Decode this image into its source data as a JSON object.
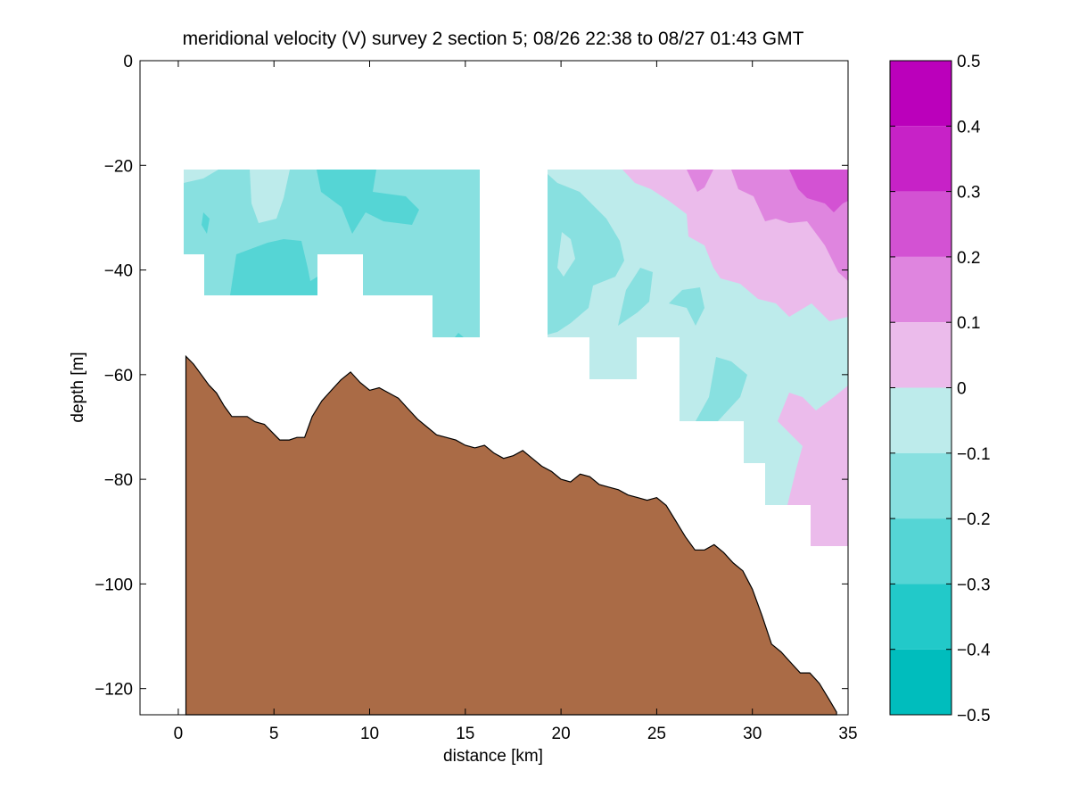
{
  "chart_data": {
    "type": "contour",
    "title": "meridional velocity (V) survey 2 section 5; 08/26 22:38 to 08/27 01:43 GMT",
    "xlabel": "distance [km]",
    "ylabel": "depth [m]",
    "xlim": [
      -2,
      35
    ],
    "ylim": [
      -125,
      0
    ],
    "xticks": [
      0,
      5,
      10,
      15,
      20,
      25,
      30,
      35
    ],
    "xtick_labels": [
      "0",
      "5",
      "10",
      "15",
      "20",
      "25",
      "30",
      "35"
    ],
    "yticks": [
      0,
      -20,
      -40,
      -60,
      -80,
      -100,
      -120
    ],
    "ytick_labels": [
      "0",
      "−20",
      "−40",
      "−60",
      "−80",
      "−100",
      "−120"
    ],
    "colorbar": {
      "range": [
        -0.5,
        0.5
      ],
      "ticks": [
        0.5,
        0.4,
        0.3,
        0.2,
        0.1,
        0,
        -0.1,
        -0.2,
        -0.3,
        -0.4,
        -0.5
      ],
      "tick_labels": [
        "0.5",
        "0.4",
        "0.3",
        "0.2",
        "0.1",
        "0",
        "−0.1",
        "−0.2",
        "−0.3",
        "−0.4",
        "−0.5"
      ],
      "levels": [
        {
          "lo": 0.4,
          "hi": 0.5,
          "color": "#bb00bb"
        },
        {
          "lo": 0.3,
          "hi": 0.4,
          "color": "#c722c7"
        },
        {
          "lo": 0.2,
          "hi": 0.3,
          "color": "#d352d3"
        },
        {
          "lo": 0.1,
          "hi": 0.2,
          "color": "#df85df"
        },
        {
          "lo": 0.0,
          "hi": 0.1,
          "color": "#ebbbeb"
        },
        {
          "lo": -0.1,
          "hi": 0.0,
          "color": "#bdebeb"
        },
        {
          "lo": -0.2,
          "hi": -0.1,
          "color": "#88e0e0"
        },
        {
          "lo": -0.3,
          "hi": -0.2,
          "color": "#55d5d5"
        },
        {
          "lo": -0.4,
          "hi": -0.3,
          "color": "#22c9c9"
        },
        {
          "lo": -0.5,
          "hi": -0.4,
          "color": "#00bdbd"
        }
      ]
    },
    "bathymetry_color": "#aa6b46",
    "bathymetry": [
      [
        0.4,
        -56.5
      ],
      [
        0.8,
        -58
      ],
      [
        1.2,
        -60
      ],
      [
        1.6,
        -62
      ],
      [
        2.0,
        -63.5
      ],
      [
        2.4,
        -66
      ],
      [
        2.8,
        -68
      ],
      [
        3.2,
        -68
      ],
      [
        3.6,
        -68
      ],
      [
        4.0,
        -69
      ],
      [
        4.5,
        -69.5
      ],
      [
        4.9,
        -71
      ],
      [
        5.3,
        -72.5
      ],
      [
        5.8,
        -72.5
      ],
      [
        6.2,
        -72
      ],
      [
        6.6,
        -72
      ],
      [
        7.0,
        -68
      ],
      [
        7.5,
        -65
      ],
      [
        8.0,
        -63
      ],
      [
        8.5,
        -61
      ],
      [
        9.0,
        -59.5
      ],
      [
        9.5,
        -61.5
      ],
      [
        10.0,
        -63
      ],
      [
        10.5,
        -62.5
      ],
      [
        11.0,
        -63.5
      ],
      [
        11.5,
        -64.5
      ],
      [
        12.0,
        -66.5
      ],
      [
        12.5,
        -68.5
      ],
      [
        13.0,
        -70
      ],
      [
        13.5,
        -71.5
      ],
      [
        14.0,
        -72
      ],
      [
        14.5,
        -72.5
      ],
      [
        15.0,
        -73.5
      ],
      [
        15.5,
        -74
      ],
      [
        16.0,
        -73.5
      ],
      [
        16.5,
        -75
      ],
      [
        17.0,
        -76
      ],
      [
        17.5,
        -75.5
      ],
      [
        18.0,
        -74.5
      ],
      [
        18.5,
        -76
      ],
      [
        19.0,
        -77.5
      ],
      [
        19.5,
        -78.5
      ],
      [
        20.0,
        -80
      ],
      [
        20.5,
        -80.5
      ],
      [
        21.0,
        -79
      ],
      [
        21.5,
        -79.5
      ],
      [
        22.0,
        -81
      ],
      [
        22.5,
        -81.5
      ],
      [
        23.0,
        -82
      ],
      [
        23.5,
        -83
      ],
      [
        24.0,
        -83.5
      ],
      [
        24.5,
        -84
      ],
      [
        25.0,
        -83.5
      ],
      [
        25.5,
        -85
      ],
      [
        26.0,
        -88
      ],
      [
        26.5,
        -91
      ],
      [
        27.0,
        -93.5
      ],
      [
        27.5,
        -93.5
      ],
      [
        28.0,
        -92.5
      ],
      [
        28.5,
        -94
      ],
      [
        29.0,
        -96
      ],
      [
        29.5,
        -97.5
      ],
      [
        30.0,
        -101
      ],
      [
        30.5,
        -106
      ],
      [
        31.0,
        -111.5
      ],
      [
        31.5,
        -113
      ],
      [
        32.0,
        -115
      ],
      [
        32.5,
        -117
      ],
      [
        33.0,
        -117
      ],
      [
        33.5,
        -119
      ],
      [
        34.0,
        -122
      ],
      [
        34.4,
        -124.5
      ]
    ]
  }
}
